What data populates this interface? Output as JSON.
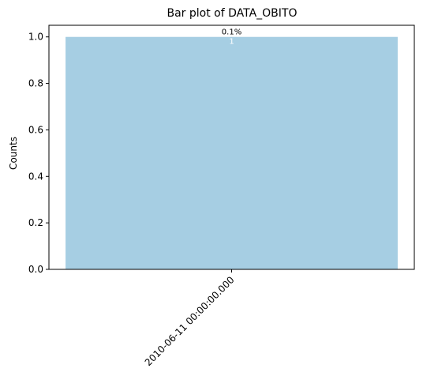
{
  "chart_data": {
    "type": "bar",
    "title": "Bar plot of DATA_OBITO",
    "xlabel": "",
    "ylabel": "Counts",
    "categories": [
      "2010-06-11 00:00:00.000"
    ],
    "values": [
      1
    ],
    "bar_labels_percent": [
      "0.1%"
    ],
    "bar_labels_count": [
      "1"
    ],
    "ylim": [
      0,
      1.05
    ],
    "yticks": [
      "0.0",
      "0.2",
      "0.4",
      "0.6",
      "0.8",
      "1.0"
    ],
    "grid": false,
    "bar_color": "#a6cee3"
  }
}
